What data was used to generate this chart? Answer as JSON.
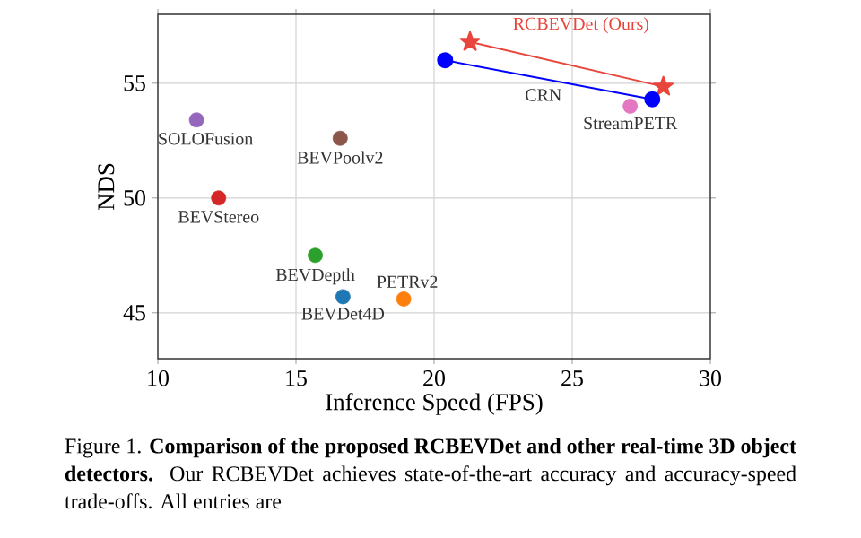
{
  "chart_data": {
    "type": "scatter",
    "xlabel": "Inference Speed (FPS)",
    "ylabel": "NDS",
    "xlim": [
      10,
      30
    ],
    "ylim": [
      43,
      58
    ],
    "xticks": [
      10,
      15,
      20,
      25,
      30
    ],
    "yticks": [
      45,
      50,
      55
    ],
    "grid": true,
    "marker": "circle",
    "series": [
      {
        "name": "RCBEVDet (Ours)",
        "type": "line",
        "marker": "star",
        "color": "#e8453c",
        "x": [
          21.3,
          28.3
        ],
        "values": [
          56.8,
          54.85
        ]
      },
      {
        "name": "CRN",
        "type": "line",
        "color": "#0000ff",
        "x": [
          20.4,
          27.9
        ],
        "values": [
          56.0,
          54.3
        ]
      },
      {
        "name": "StreamPETR",
        "color": "#e377c2",
        "x": [
          27.1
        ],
        "values": [
          54.0
        ]
      },
      {
        "name": "SOLOFusion",
        "color": "#9467bd",
        "x": [
          11.4
        ],
        "values": [
          53.4
        ]
      },
      {
        "name": "BEVPoolv2",
        "color": "#8c564b",
        "x": [
          16.6
        ],
        "values": [
          52.6
        ]
      },
      {
        "name": "BEVStereo",
        "color": "#d62728",
        "x": [
          12.2
        ],
        "values": [
          50.0
        ]
      },
      {
        "name": "BEVDepth",
        "color": "#2ca02c",
        "x": [
          15.7
        ],
        "values": [
          47.5
        ]
      },
      {
        "name": "BEVDet4D",
        "color": "#1f77b4",
        "x": [
          16.7
        ],
        "values": [
          45.7
        ]
      },
      {
        "name": "PETRv2",
        "color": "#ff7f0e",
        "x": [
          18.9
        ],
        "values": [
          45.6
        ]
      }
    ],
    "annotations": [
      "Figure 1. **Comparison of the proposed RCBEVDet and other real-time 3D object detectors.** Our RCBEVDet achieves state-of-the-art accuracy and accuracy-speed trade-offs. All entries are"
    ]
  }
}
